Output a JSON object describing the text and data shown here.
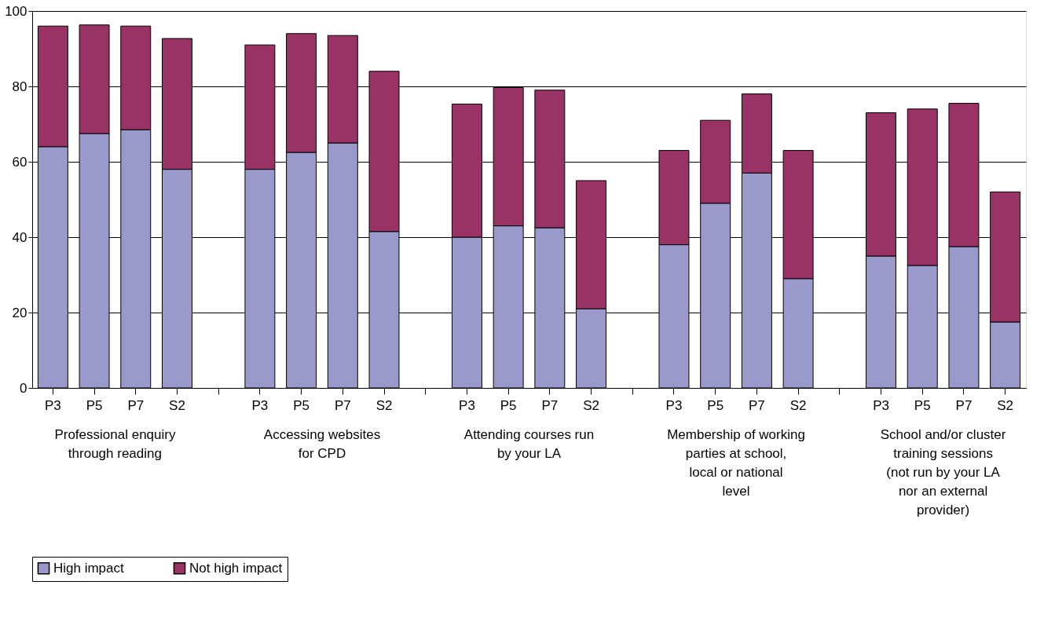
{
  "chart_data": {
    "type": "bar",
    "stacked": true,
    "categories": [
      "P3",
      "P5",
      "P7",
      "S2",
      null,
      "P3",
      "P5",
      "P7",
      "S2",
      null,
      "P3",
      "P5",
      "P7",
      "S2",
      null,
      "P3",
      "P5",
      "P7",
      "S2",
      null,
      "P3",
      "P5",
      "P7",
      "S2"
    ],
    "series": [
      {
        "name": "High impact",
        "color": "#9999cc",
        "values": [
          64,
          67.5,
          68.5,
          58,
          null,
          58,
          62.5,
          65,
          41.5,
          null,
          40,
          43,
          42.5,
          21,
          null,
          38,
          49,
          57,
          29,
          null,
          35,
          32.5,
          37.5,
          17.5
        ]
      },
      {
        "name": "Not high impact",
        "color": "#993366",
        "values": [
          32,
          28.8,
          27.5,
          34.7,
          null,
          33,
          31.5,
          28.5,
          42.5,
          null,
          35.3,
          36.7,
          36.5,
          34,
          null,
          25,
          22,
          21,
          34,
          null,
          38,
          41.5,
          38,
          34.5
        ]
      }
    ],
    "annotations": [
      "Professional enquiry through reading",
      "Accessing websites for CPD",
      "Attending courses run by your LA",
      "Membership of working parties at school, local or national level",
      "School and/or cluster training sessions (not run by your LA nor an external provider)"
    ],
    "ylim": [
      0,
      100
    ],
    "yticks": [
      0,
      20,
      40,
      60,
      80,
      100
    ],
    "grid": "y",
    "legend": "bottom"
  }
}
